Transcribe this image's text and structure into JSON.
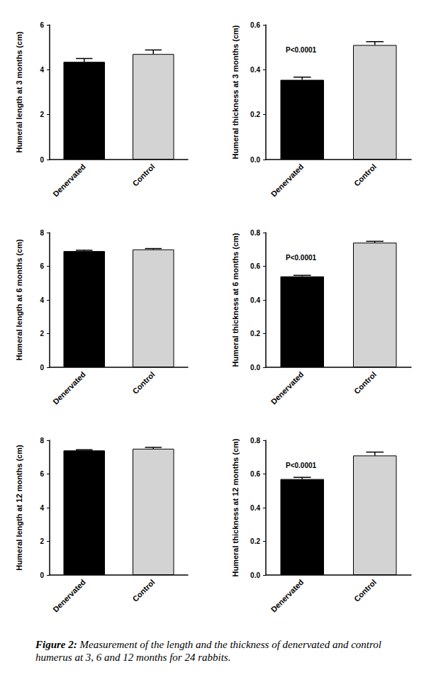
{
  "chart_data": [
    {
      "type": "bar",
      "ylabel": "Humeral length at 3 months (cm)",
      "categories": [
        "Denervated",
        "Control"
      ],
      "values": [
        4.35,
        4.7
      ],
      "error": [
        0.15,
        0.18
      ],
      "colors": [
        "#000000",
        "#d3d3d3"
      ],
      "ylim": [
        0,
        6
      ],
      "yticks": [
        0,
        2,
        4,
        6
      ]
    },
    {
      "type": "bar",
      "ylabel": "Humeral thickness at 3 months (cm)",
      "categories": [
        "Denervated",
        "Control"
      ],
      "values": [
        0.355,
        0.51
      ],
      "error": [
        0.012,
        0.015
      ],
      "colors": [
        "#000000",
        "#d3d3d3"
      ],
      "ylim": [
        0,
        0.6
      ],
      "yticks": [
        {
          "value": 0,
          "label": "0.0"
        },
        0.2,
        0.4,
        0.6
      ],
      "annotation": "P<0.0001"
    },
    {
      "type": "bar",
      "ylabel": "Humeral length at 6 months (cm)",
      "categories": [
        "Denervated",
        "Control"
      ],
      "values": [
        6.9,
        7.0
      ],
      "error": [
        0.05,
        0.05
      ],
      "colors": [
        "#000000",
        "#d3d3d3"
      ],
      "ylim": [
        0,
        8
      ],
      "yticks": [
        0,
        2,
        4,
        6,
        8
      ]
    },
    {
      "type": "bar",
      "ylabel": "Humeral thickness at 6 months (cm)",
      "categories": [
        "Denervated",
        "Control"
      ],
      "values": [
        0.54,
        0.74
      ],
      "error": [
        0.006,
        0.008
      ],
      "colors": [
        "#000000",
        "#d3d3d3"
      ],
      "ylim": [
        0,
        0.8
      ],
      "yticks": [
        {
          "value": 0,
          "label": "0.0"
        },
        0.2,
        0.4,
        0.6,
        0.8
      ],
      "annotation": "P<0.0001"
    },
    {
      "type": "bar",
      "ylabel": "Humeral length at 12 months (cm)",
      "categories": [
        "Denervated",
        "Control"
      ],
      "values": [
        7.4,
        7.5
      ],
      "error": [
        0.04,
        0.08
      ],
      "colors": [
        "#000000",
        "#d3d3d3"
      ],
      "ylim": [
        0,
        8
      ],
      "yticks": [
        0,
        2,
        4,
        6,
        8
      ]
    },
    {
      "type": "bar",
      "ylabel": "Humeral thickness at 12 months (cm)",
      "categories": [
        "Denervated",
        "Control"
      ],
      "values": [
        0.57,
        0.71
      ],
      "error": [
        0.01,
        0.02
      ],
      "colors": [
        "#000000",
        "#d3d3d3"
      ],
      "ylim": [
        0,
        0.8
      ],
      "yticks": [
        {
          "value": 0,
          "label": "0.0"
        },
        0.2,
        0.4,
        0.6,
        0.8
      ],
      "annotation": "P<0.0001"
    }
  ],
  "caption": {
    "label": "Figure 2:",
    "text": "Measurement of the length and the thickness of denervated and control humerus at 3, 6 and 12 months for 24 rabbits."
  }
}
